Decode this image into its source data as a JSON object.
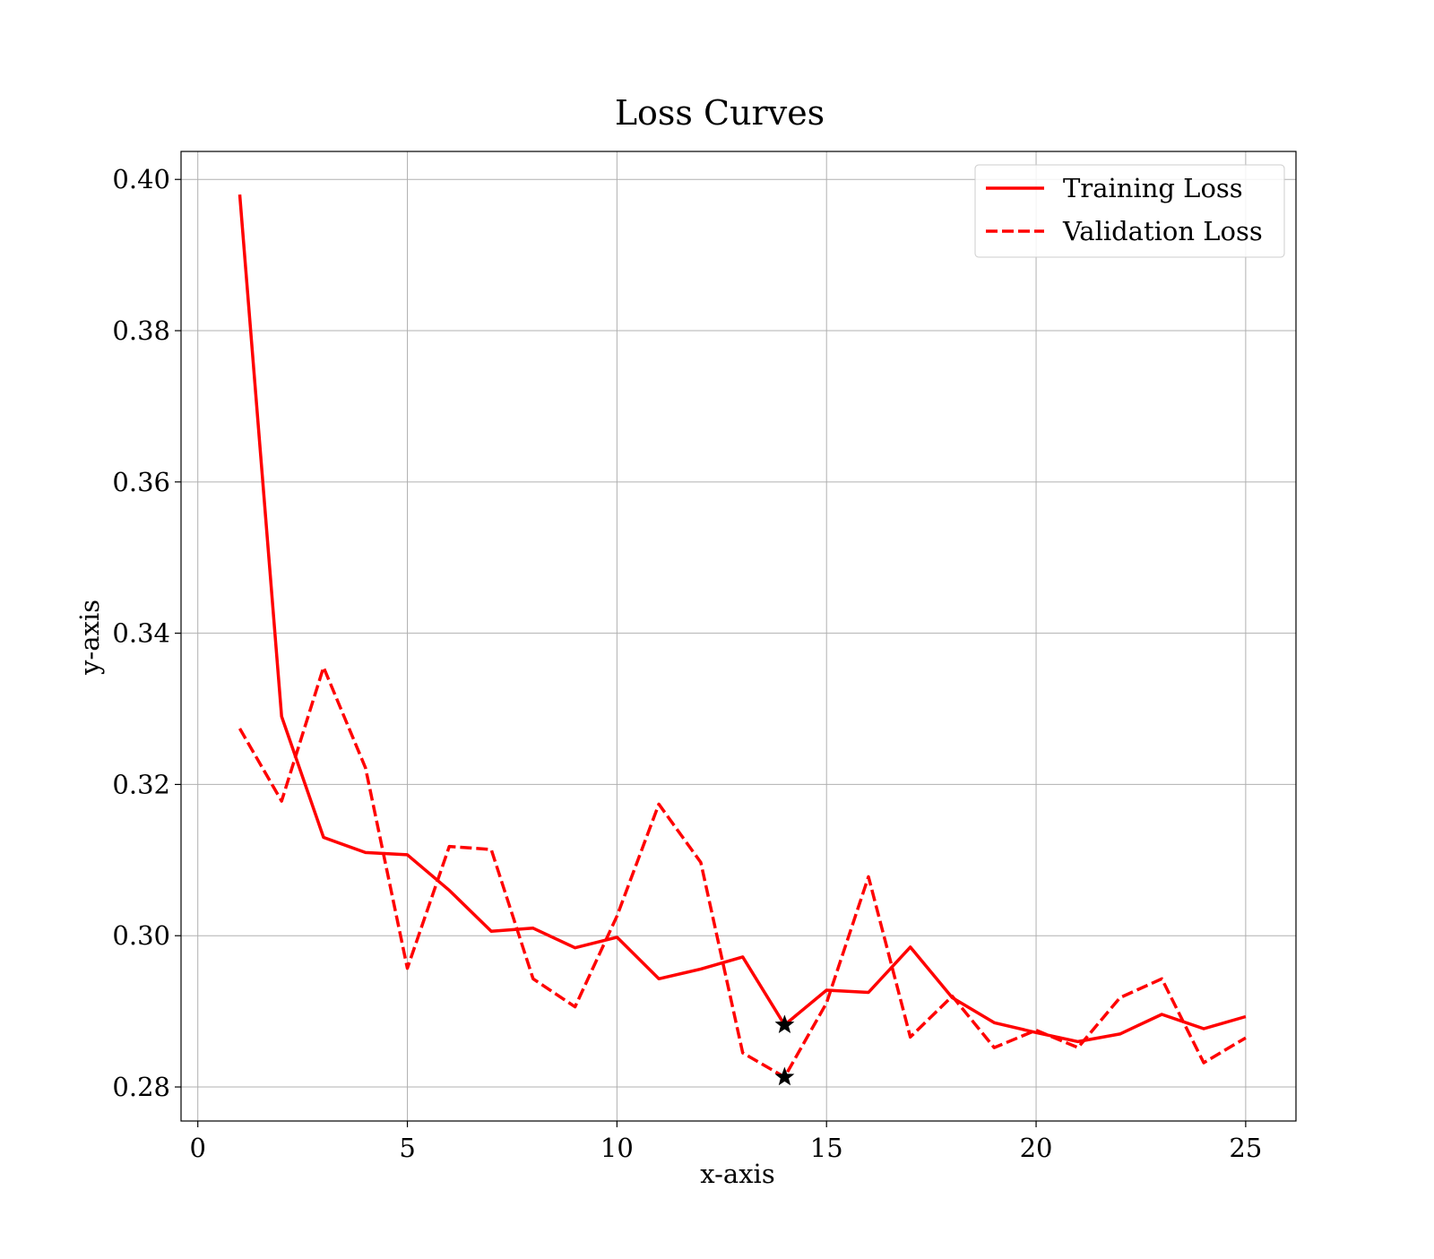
{
  "chart_data": {
    "type": "line",
    "title": "Loss Curves",
    "xlabel": "x-axis",
    "ylabel": "y-axis",
    "xlim": [
      -0.4,
      26.2
    ],
    "ylim": [
      0.2755,
      0.4037
    ],
    "xticks": [
      0,
      5,
      10,
      15,
      20,
      25
    ],
    "xtick_labels": [
      "0",
      "5",
      "10",
      "15",
      "20",
      "25"
    ],
    "yticks": [
      0.28,
      0.3,
      0.32,
      0.34,
      0.36,
      0.38,
      0.4
    ],
    "ytick_labels": [
      "0.28",
      "0.30",
      "0.32",
      "0.34",
      "0.36",
      "0.38",
      "0.40"
    ],
    "grid": true,
    "legend_position": "top-right",
    "x": [
      1,
      2,
      3,
      4,
      5,
      6,
      7,
      8,
      9,
      10,
      11,
      12,
      13,
      14,
      15,
      16,
      17,
      18,
      19,
      20,
      21,
      22,
      23,
      24,
      25
    ],
    "series": [
      {
        "name": "Training Loss",
        "color": "#ff0000",
        "style": "solid",
        "values": [
          0.398,
          0.329,
          0.313,
          0.311,
          0.3107,
          0.306,
          0.3006,
          0.301,
          0.2984,
          0.2998,
          0.2943,
          0.2956,
          0.2972,
          0.2882,
          0.2928,
          0.2925,
          0.2985,
          0.2918,
          0.2885,
          0.2872,
          0.286,
          0.287,
          0.2896,
          0.2877,
          0.2893
        ]
      },
      {
        "name": "Validation Loss",
        "color": "#ff0000",
        "style": "dashed",
        "values": [
          0.3274,
          0.3178,
          0.3355,
          0.3222,
          0.2957,
          0.3118,
          0.3114,
          0.2943,
          0.2906,
          0.3026,
          0.3174,
          0.3097,
          0.2845,
          0.2813,
          0.2911,
          0.3078,
          0.2866,
          0.292,
          0.2852,
          0.2875,
          0.2852,
          0.2918,
          0.2943,
          0.2832,
          0.2865
        ]
      }
    ],
    "markers": [
      {
        "series": "Training Loss",
        "x": 14,
        "y": 0.2882,
        "symbol": "star",
        "color": "#000000"
      },
      {
        "series": "Validation Loss",
        "x": 14,
        "y": 0.2813,
        "symbol": "star",
        "color": "#000000"
      }
    ]
  }
}
